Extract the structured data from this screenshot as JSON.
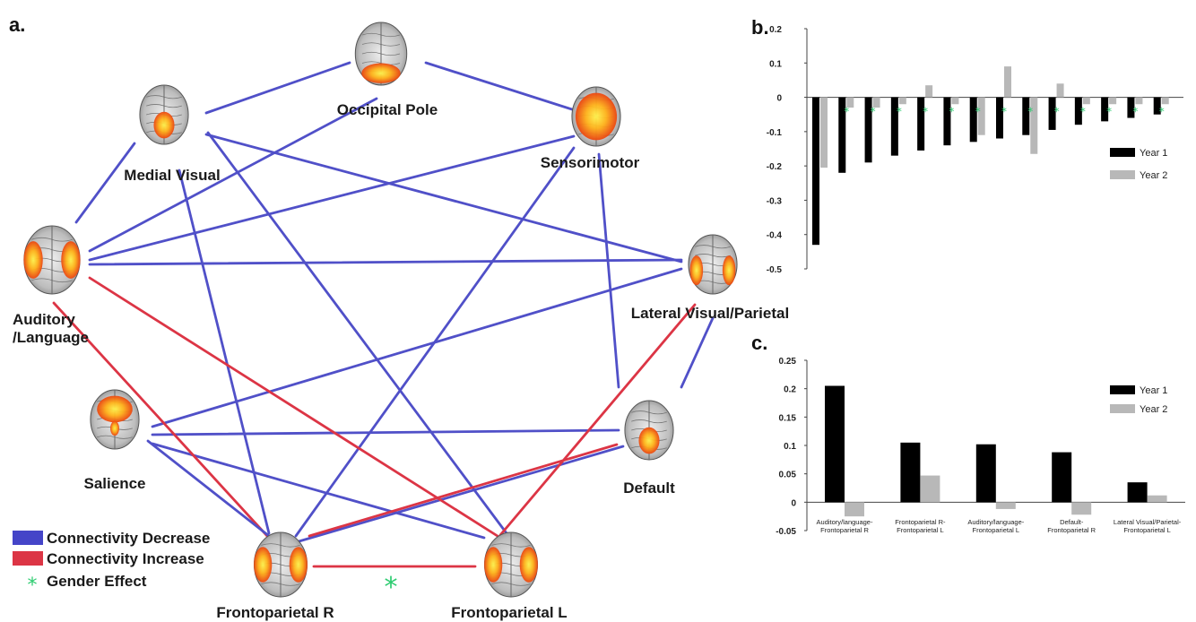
{
  "panels": {
    "a": "a.",
    "b": "b.",
    "c": "c."
  },
  "colors": {
    "decrease": "#5050c8",
    "increase": "#dc3545",
    "gender": "#2ecc71",
    "year1": "#000000",
    "year2": "#b8b8b8"
  },
  "network": {
    "nodes": [
      {
        "id": "occipital",
        "label": "Occipital Pole",
        "blob": "bottom"
      },
      {
        "id": "medial",
        "label": "Medial Visual",
        "blob": "center-low"
      },
      {
        "id": "sensorimotor",
        "label": "Sensorimotor",
        "blob": "full"
      },
      {
        "id": "auditory",
        "label": "Auditory",
        "label2": "/Language",
        "blob": "sides"
      },
      {
        "id": "lateral",
        "label": "Lateral Visual/Parietal",
        "blob": "lateral"
      },
      {
        "id": "salience",
        "label": "Salience",
        "blob": "top"
      },
      {
        "id": "default",
        "label": "Default",
        "blob": "center-low"
      },
      {
        "id": "fpr",
        "label": "Frontoparietal R",
        "blob": "sides"
      },
      {
        "id": "fpl",
        "label": "Frontoparietal L",
        "blob": "sides"
      }
    ],
    "edges": [
      {
        "from": "medial",
        "to": "occipital",
        "type": "decrease"
      },
      {
        "from": "occipital",
        "to": "sensorimotor",
        "type": "decrease"
      },
      {
        "from": "auditory",
        "to": "medial",
        "type": "decrease"
      },
      {
        "from": "auditory",
        "to": "occipital",
        "type": "decrease"
      },
      {
        "from": "auditory",
        "to": "sensorimotor",
        "type": "decrease"
      },
      {
        "from": "auditory",
        "to": "lateral",
        "type": "decrease"
      },
      {
        "from": "medial",
        "to": "lateral",
        "type": "decrease"
      },
      {
        "from": "medial",
        "to": "fpr",
        "type": "decrease"
      },
      {
        "from": "medial",
        "to": "fpl",
        "type": "decrease"
      },
      {
        "from": "sensorimotor",
        "to": "fpr",
        "type": "decrease"
      },
      {
        "from": "sensorimotor",
        "to": "default",
        "type": "decrease"
      },
      {
        "from": "lateral",
        "to": "default",
        "type": "decrease"
      },
      {
        "from": "salience",
        "to": "lateral",
        "type": "decrease"
      },
      {
        "from": "salience",
        "to": "default",
        "type": "decrease"
      },
      {
        "from": "salience",
        "to": "fpl",
        "type": "decrease"
      },
      {
        "from": "default",
        "to": "fpr",
        "type": "decrease"
      },
      {
        "from": "auditory",
        "to": "fpr",
        "type": "increase"
      },
      {
        "from": "auditory",
        "to": "fpl",
        "type": "increase"
      },
      {
        "from": "fpr",
        "to": "fpl",
        "type": "increase"
      },
      {
        "from": "default",
        "to": "fpr",
        "type": "increase"
      },
      {
        "from": "lateral",
        "to": "fpl",
        "type": "increase"
      },
      {
        "from": "salience",
        "to": "fpr",
        "type": "decrease"
      }
    ],
    "gender_marker": "*"
  },
  "legend": [
    {
      "type": "decrease",
      "label": "Connectivity Decrease"
    },
    {
      "type": "increase",
      "label": "Connectivity Increase"
    },
    {
      "type": "gender",
      "label": "Gender Effect",
      "symbol": "*"
    }
  ],
  "chart_data": [
    {
      "type": "bar",
      "panel": "b",
      "ylim": [
        -0.5,
        0.2
      ],
      "yticks": [
        "0.2",
        "0.1",
        "0",
        "-0.1",
        "-0.2",
        "-0.3",
        "-0.4",
        "-0.5"
      ],
      "legend_position": "right",
      "series": [
        {
          "name": "Year 1",
          "values": [
            -0.43,
            -0.22,
            -0.19,
            -0.17,
            -0.155,
            -0.14,
            -0.13,
            -0.12,
            -0.11,
            -0.095,
            -0.08,
            -0.07,
            -0.06,
            -0.05
          ]
        },
        {
          "name": "Year 2",
          "values": [
            -0.205,
            -0.03,
            -0.03,
            -0.02,
            0.035,
            -0.02,
            -0.11,
            0.09,
            -0.165,
            0.04,
            -0.02,
            -0.02,
            -0.02,
            -0.02
          ]
        }
      ],
      "gender_flags": [
        false,
        true,
        true,
        true,
        true,
        true,
        true,
        true,
        true,
        true,
        true,
        true,
        true,
        true
      ]
    },
    {
      "type": "bar",
      "panel": "c",
      "ylim": [
        -0.05,
        0.25
      ],
      "yticks": [
        "0.25",
        "0.2",
        "0.15",
        "0.1",
        "0.05",
        "0",
        "-0.05"
      ],
      "legend_position": "top-right",
      "categories": [
        [
          "Auditory/language-",
          "Frontoparietal R"
        ],
        [
          "Frontoparietal R-",
          "Frontoparietal L"
        ],
        [
          "Auditory/language-",
          "Frontoparietal L"
        ],
        [
          "Default-",
          "Frontoparietal R"
        ],
        [
          "Lateral Visual/Parietal-",
          "Frontoparietal L"
        ]
      ],
      "series": [
        {
          "name": "Year 1",
          "values": [
            0.205,
            0.105,
            0.102,
            0.088,
            0.035
          ]
        },
        {
          "name": "Year 2",
          "values": [
            -0.025,
            0.047,
            -0.012,
            -0.022,
            0.012
          ]
        }
      ]
    }
  ]
}
